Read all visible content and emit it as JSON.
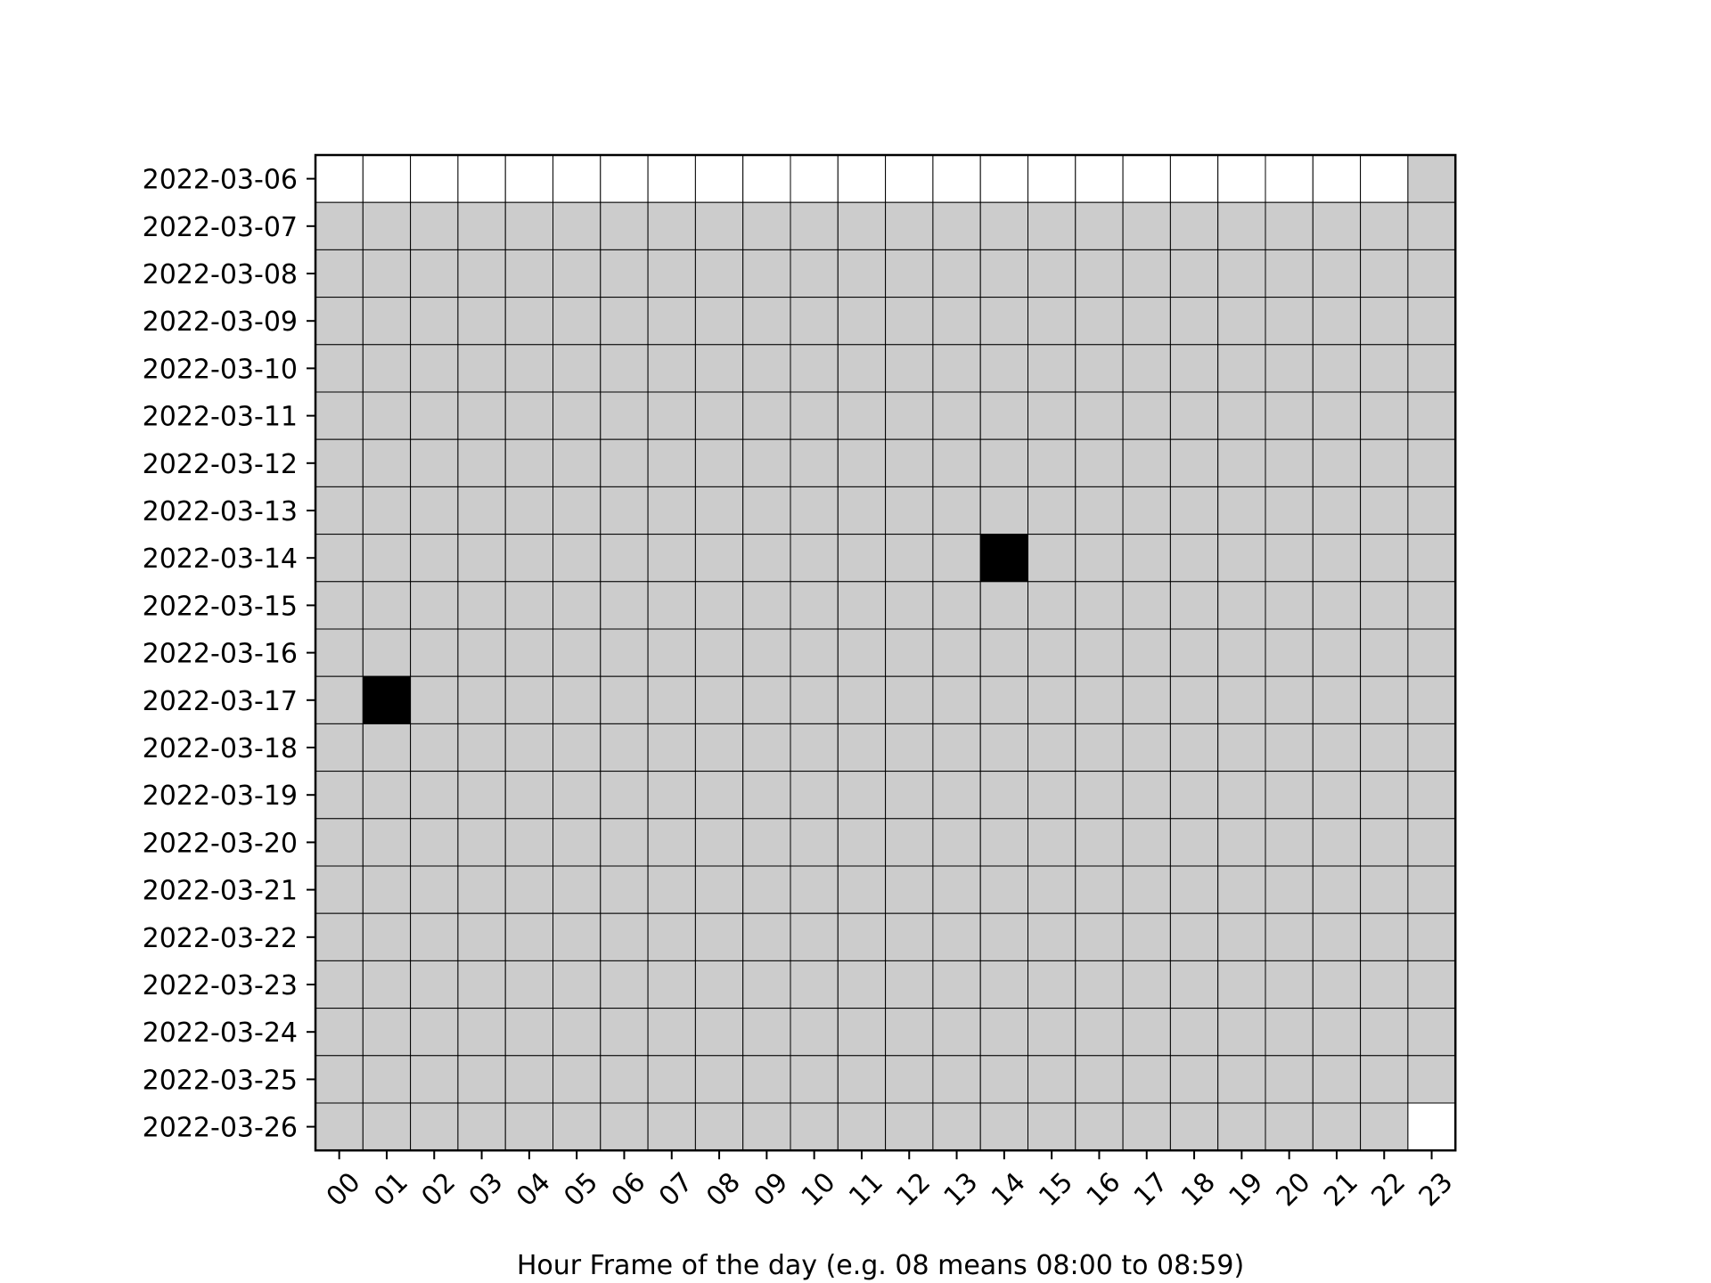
{
  "chart_data": {
    "type": "heatmap",
    "title": "",
    "xlabel": "Hour Frame of the day (e.g. 08 means 08:00 to 08:59)",
    "ylabel": "",
    "x_categories": [
      "00",
      "01",
      "02",
      "03",
      "04",
      "05",
      "06",
      "07",
      "08",
      "09",
      "10",
      "11",
      "12",
      "13",
      "14",
      "15",
      "16",
      "17",
      "18",
      "19",
      "20",
      "21",
      "22",
      "23"
    ],
    "y_categories": [
      "2022-03-06",
      "2022-03-07",
      "2022-03-08",
      "2022-03-09",
      "2022-03-10",
      "2022-03-11",
      "2022-03-12",
      "2022-03-13",
      "2022-03-14",
      "2022-03-15",
      "2022-03-16",
      "2022-03-17",
      "2022-03-18",
      "2022-03-19",
      "2022-03-20",
      "2022-03-21",
      "2022-03-22",
      "2022-03-23",
      "2022-03-24",
      "2022-03-25",
      "2022-03-26"
    ],
    "values": [
      [
        0,
        0,
        0,
        0,
        0,
        0,
        0,
        0,
        0,
        0,
        0,
        0,
        0,
        0,
        0,
        0,
        0,
        0,
        0,
        0,
        0,
        0,
        0,
        1
      ],
      [
        1,
        1,
        1,
        1,
        1,
        1,
        1,
        1,
        1,
        1,
        1,
        1,
        1,
        1,
        1,
        1,
        1,
        1,
        1,
        1,
        1,
        1,
        1,
        1
      ],
      [
        1,
        1,
        1,
        1,
        1,
        1,
        1,
        1,
        1,
        1,
        1,
        1,
        1,
        1,
        1,
        1,
        1,
        1,
        1,
        1,
        1,
        1,
        1,
        1
      ],
      [
        1,
        1,
        1,
        1,
        1,
        1,
        1,
        1,
        1,
        1,
        1,
        1,
        1,
        1,
        1,
        1,
        1,
        1,
        1,
        1,
        1,
        1,
        1,
        1
      ],
      [
        1,
        1,
        1,
        1,
        1,
        1,
        1,
        1,
        1,
        1,
        1,
        1,
        1,
        1,
        1,
        1,
        1,
        1,
        1,
        1,
        1,
        1,
        1,
        1
      ],
      [
        1,
        1,
        1,
        1,
        1,
        1,
        1,
        1,
        1,
        1,
        1,
        1,
        1,
        1,
        1,
        1,
        1,
        1,
        1,
        1,
        1,
        1,
        1,
        1
      ],
      [
        1,
        1,
        1,
        1,
        1,
        1,
        1,
        1,
        1,
        1,
        1,
        1,
        1,
        1,
        1,
        1,
        1,
        1,
        1,
        1,
        1,
        1,
        1,
        1
      ],
      [
        1,
        1,
        1,
        1,
        1,
        1,
        1,
        1,
        1,
        1,
        1,
        1,
        1,
        1,
        1,
        1,
        1,
        1,
        1,
        1,
        1,
        1,
        1,
        1
      ],
      [
        1,
        1,
        1,
        1,
        1,
        1,
        1,
        1,
        1,
        1,
        1,
        1,
        1,
        1,
        2,
        1,
        1,
        1,
        1,
        1,
        1,
        1,
        1,
        1
      ],
      [
        1,
        1,
        1,
        1,
        1,
        1,
        1,
        1,
        1,
        1,
        1,
        1,
        1,
        1,
        1,
        1,
        1,
        1,
        1,
        1,
        1,
        1,
        1,
        1
      ],
      [
        1,
        1,
        1,
        1,
        1,
        1,
        1,
        1,
        1,
        1,
        1,
        1,
        1,
        1,
        1,
        1,
        1,
        1,
        1,
        1,
        1,
        1,
        1,
        1
      ],
      [
        1,
        2,
        1,
        1,
        1,
        1,
        1,
        1,
        1,
        1,
        1,
        1,
        1,
        1,
        1,
        1,
        1,
        1,
        1,
        1,
        1,
        1,
        1,
        1
      ],
      [
        1,
        1,
        1,
        1,
        1,
        1,
        1,
        1,
        1,
        1,
        1,
        1,
        1,
        1,
        1,
        1,
        1,
        1,
        1,
        1,
        1,
        1,
        1,
        1
      ],
      [
        1,
        1,
        1,
        1,
        1,
        1,
        1,
        1,
        1,
        1,
        1,
        1,
        1,
        1,
        1,
        1,
        1,
        1,
        1,
        1,
        1,
        1,
        1,
        1
      ],
      [
        1,
        1,
        1,
        1,
        1,
        1,
        1,
        1,
        1,
        1,
        1,
        1,
        1,
        1,
        1,
        1,
        1,
        1,
        1,
        1,
        1,
        1,
        1,
        1
      ],
      [
        1,
        1,
        1,
        1,
        1,
        1,
        1,
        1,
        1,
        1,
        1,
        1,
        1,
        1,
        1,
        1,
        1,
        1,
        1,
        1,
        1,
        1,
        1,
        1
      ],
      [
        1,
        1,
        1,
        1,
        1,
        1,
        1,
        1,
        1,
        1,
        1,
        1,
        1,
        1,
        1,
        1,
        1,
        1,
        1,
        1,
        1,
        1,
        1,
        1
      ],
      [
        1,
        1,
        1,
        1,
        1,
        1,
        1,
        1,
        1,
        1,
        1,
        1,
        1,
        1,
        1,
        1,
        1,
        1,
        1,
        1,
        1,
        1,
        1,
        1
      ],
      [
        1,
        1,
        1,
        1,
        1,
        1,
        1,
        1,
        1,
        1,
        1,
        1,
        1,
        1,
        1,
        1,
        1,
        1,
        1,
        1,
        1,
        1,
        1,
        1
      ],
      [
        1,
        1,
        1,
        1,
        1,
        1,
        1,
        1,
        1,
        1,
        1,
        1,
        1,
        1,
        1,
        1,
        1,
        1,
        1,
        1,
        1,
        1,
        1,
        1
      ],
      [
        1,
        1,
        1,
        1,
        1,
        1,
        1,
        1,
        1,
        1,
        1,
        1,
        1,
        1,
        1,
        1,
        1,
        1,
        1,
        1,
        1,
        1,
        1,
        0
      ]
    ],
    "colors": {
      "0": "#ffffff",
      "1": "#cccccc",
      "2": "#000000"
    },
    "grid": true,
    "legend": "none"
  }
}
